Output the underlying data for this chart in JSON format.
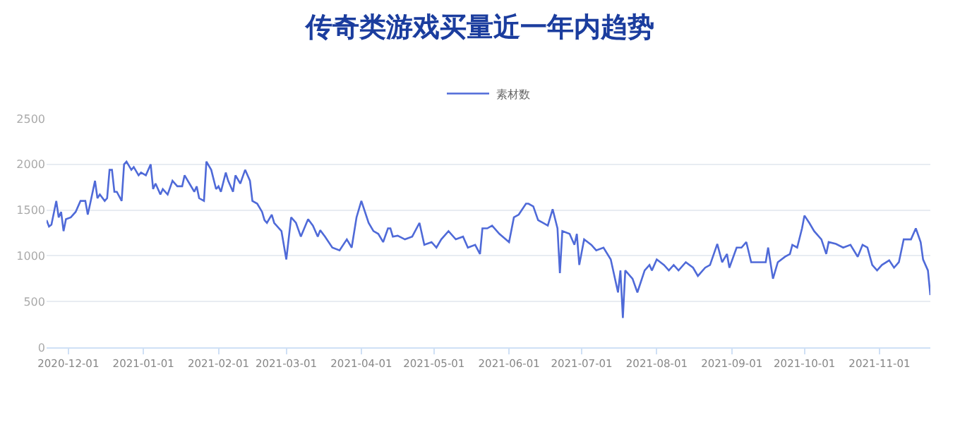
{
  "chart_data": {
    "type": "line",
    "title": "传奇类游戏买量近一年内趋势",
    "legend": "top",
    "xlim": [
      "2020-11-22",
      "2021-11-22"
    ],
    "xticks": [
      "2020-12-01",
      "2021-01-01",
      "2021-02-01",
      "2021-03-01",
      "2021-04-01",
      "2021-05-01",
      "2021-06-01",
      "2021-07-01",
      "2021-08-01",
      "2021-09-01",
      "2021-10-01",
      "2021-11-01"
    ],
    "ylim": [
      0,
      2500
    ],
    "yticks": [
      0,
      500,
      1000,
      1500,
      2000,
      2500
    ],
    "grid": "y",
    "marker": "none",
    "line_style": "solid",
    "x": [
      "2020-11-22",
      "2020-11-23",
      "2020-11-24",
      "2020-11-26",
      "2020-11-27",
      "2020-11-28",
      "2020-11-29",
      "2020-11-30",
      "2020-12-02",
      "2020-12-04",
      "2020-12-06",
      "2020-12-08",
      "2020-12-09",
      "2020-12-10",
      "2020-12-12",
      "2020-12-13",
      "2020-12-14",
      "2020-12-16",
      "2020-12-17",
      "2020-12-18",
      "2020-12-19",
      "2020-12-20",
      "2020-12-21",
      "2020-12-23",
      "2020-12-24",
      "2020-12-25",
      "2020-12-27",
      "2020-12-28",
      "2020-12-30",
      "2020-12-31",
      "2021-01-02",
      "2021-01-04",
      "2021-01-05",
      "2021-01-06",
      "2021-01-08",
      "2021-01-09",
      "2021-01-11",
      "2021-01-13",
      "2021-01-15",
      "2021-01-17",
      "2021-01-18",
      "2021-01-20",
      "2021-01-22",
      "2021-01-23",
      "2021-01-24",
      "2021-01-26",
      "2021-01-27",
      "2021-01-29",
      "2021-01-31",
      "2021-02-01",
      "2021-02-02",
      "2021-02-04",
      "2021-02-05",
      "2021-02-07",
      "2021-02-08",
      "2021-02-10",
      "2021-02-12",
      "2021-02-14",
      "2021-02-15",
      "2021-02-17",
      "2021-02-19",
      "2021-02-20",
      "2021-02-21",
      "2021-02-23",
      "2021-02-24",
      "2021-02-27",
      "2021-03-01",
      "2021-03-03",
      "2021-03-05",
      "2021-03-07",
      "2021-03-10",
      "2021-03-12",
      "2021-03-14",
      "2021-03-15",
      "2021-03-17",
      "2021-03-20",
      "2021-03-23",
      "2021-03-26",
      "2021-03-28",
      "2021-03-30",
      "2021-04-01",
      "2021-04-04",
      "2021-04-06",
      "2021-04-08",
      "2021-04-10",
      "2021-04-12",
      "2021-04-13",
      "2021-04-14",
      "2021-04-16",
      "2021-04-19",
      "2021-04-22",
      "2021-04-25",
      "2021-04-27",
      "2021-04-30",
      "2021-05-02",
      "2021-05-04",
      "2021-05-07",
      "2021-05-10",
      "2021-05-13",
      "2021-05-15",
      "2021-05-18",
      "2021-05-20",
      "2021-05-21",
      "2021-05-23",
      "2021-05-25",
      "2021-05-28",
      "2021-06-01",
      "2021-06-03",
      "2021-06-05",
      "2021-06-08",
      "2021-06-09",
      "2021-06-11",
      "2021-06-13",
      "2021-06-15",
      "2021-06-17",
      "2021-06-19",
      "2021-06-21",
      "2021-06-22",
      "2021-06-23",
      "2021-06-26",
      "2021-06-28",
      "2021-06-29",
      "2021-06-30",
      "2021-07-02",
      "2021-07-05",
      "2021-07-07",
      "2021-07-10",
      "2021-07-13",
      "2021-07-16",
      "2021-07-17",
      "2021-07-18",
      "2021-07-19",
      "2021-07-22",
      "2021-07-24",
      "2021-07-27",
      "2021-07-29",
      "2021-07-30",
      "2021-08-01",
      "2021-08-04",
      "2021-08-06",
      "2021-08-08",
      "2021-08-10",
      "2021-08-13",
      "2021-08-16",
      "2021-08-18",
      "2021-08-21",
      "2021-08-23",
      "2021-08-26",
      "2021-08-28",
      "2021-08-30",
      "2021-08-31",
      "2021-09-03",
      "2021-09-05",
      "2021-09-07",
      "2021-09-09",
      "2021-09-12",
      "2021-09-15",
      "2021-09-16",
      "2021-09-18",
      "2021-09-20",
      "2021-09-23",
      "2021-09-25",
      "2021-09-26",
      "2021-09-28",
      "2021-09-30",
      "2021-10-01",
      "2021-10-03",
      "2021-10-05",
      "2021-10-08",
      "2021-10-10",
      "2021-10-11",
      "2021-10-14",
      "2021-10-17",
      "2021-10-20",
      "2021-10-23",
      "2021-10-25",
      "2021-10-27",
      "2021-10-29",
      "2021-10-31",
      "2021-11-02",
      "2021-11-05",
      "2021-11-07",
      "2021-11-09",
      "2021-11-11",
      "2021-11-14",
      "2021-11-16",
      "2021-11-18",
      "2021-11-19",
      "2021-11-21",
      "2021-11-22"
    ],
    "series": [
      {
        "name": "素材数",
        "color": "#4f6ad8",
        "values": [
          1390,
          1320,
          1340,
          1600,
          1420,
          1480,
          1270,
          1400,
          1420,
          1480,
          1600,
          1600,
          1450,
          1570,
          1820,
          1630,
          1670,
          1600,
          1630,
          1940,
          1940,
          1700,
          1700,
          1600,
          2000,
          2030,
          1940,
          1970,
          1880,
          1910,
          1880,
          2000,
          1730,
          1790,
          1670,
          1730,
          1670,
          1820,
          1760,
          1760,
          1880,
          1790,
          1700,
          1760,
          1630,
          1600,
          2030,
          1940,
          1730,
          1760,
          1700,
          1910,
          1820,
          1700,
          1880,
          1790,
          1940,
          1820,
          1600,
          1570,
          1480,
          1390,
          1360,
          1450,
          1360,
          1270,
          960,
          1420,
          1360,
          1210,
          1400,
          1330,
          1210,
          1280,
          1210,
          1090,
          1060,
          1180,
          1090,
          1420,
          1600,
          1360,
          1270,
          1240,
          1150,
          1300,
          1300,
          1210,
          1220,
          1180,
          1210,
          1360,
          1120,
          1150,
          1090,
          1180,
          1270,
          1180,
          1210,
          1090,
          1120,
          1020,
          1300,
          1300,
          1330,
          1240,
          1150,
          1420,
          1450,
          1570,
          1570,
          1540,
          1390,
          1360,
          1330,
          1510,
          1300,
          810,
          1270,
          1240,
          1120,
          1240,
          900,
          1180,
          1120,
          1060,
          1090,
          960,
          600,
          840,
          320,
          840,
          750,
          600,
          840,
          900,
          840,
          960,
          900,
          840,
          900,
          840,
          930,
          870,
          780,
          870,
          900,
          1130,
          930,
          1020,
          870,
          1090,
          1090,
          1150,
          930,
          930,
          930,
          1090,
          750,
          930,
          990,
          1020,
          1120,
          1090,
          1300,
          1440,
          1360,
          1270,
          1180,
          1020,
          1150,
          1130,
          1090,
          1120,
          990,
          1120,
          1090,
          900,
          840,
          900,
          950,
          870,
          930,
          1180,
          1180,
          1300,
          1150,
          960,
          840,
          570
        ]
      }
    ]
  }
}
